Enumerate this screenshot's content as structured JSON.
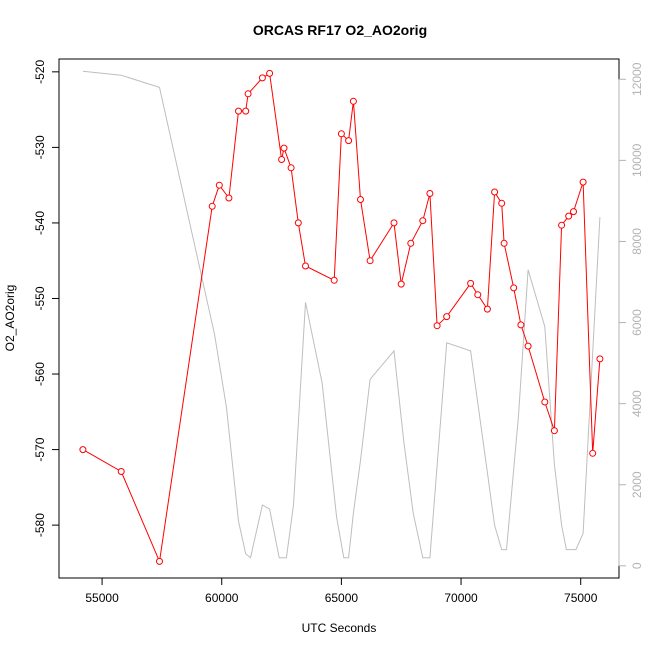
{
  "chart_data": {
    "type": "line",
    "title": "ORCAS RF17 O2_AO2orig",
    "xlabel": "UTC Seconds",
    "ylabel": "O2_AO2orig",
    "xlim": [
      53200,
      76600
    ],
    "ylim": [
      -587.0,
      -518.3
    ],
    "y2lim": [
      -300,
      12500
    ],
    "x_ticks": [
      55000,
      60000,
      65000,
      70000,
      75000
    ],
    "y_ticks": [
      -580,
      -570,
      -560,
      -550,
      -540,
      -530,
      -520
    ],
    "y2_ticks": [
      0,
      2000,
      4000,
      6000,
      8000,
      10000,
      12000
    ],
    "grid": false,
    "colors": {
      "primary": "#ff0000",
      "secondary": "#bebebe",
      "axis": "#000000",
      "right_axis": "#b3b3b3"
    },
    "series": [
      {
        "axis": "left",
        "x": [
          54200,
          55800,
          57400,
          59600,
          59900,
          60300,
          60700,
          61000,
          61100,
          61700,
          62000,
          62500,
          62600,
          62900,
          63200,
          63500,
          64700,
          65000,
          65300,
          65500,
          65800,
          66200,
          67200,
          67500,
          67900,
          68400,
          68700,
          69000,
          69400,
          70400,
          70700,
          71100,
          71400,
          71700,
          71800,
          72200,
          72500,
          72800,
          73500,
          73900,
          74200,
          74500,
          74700,
          75100,
          75500,
          75800
        ],
        "y": [
          -570.0,
          -572.9,
          -584.8,
          -537.8,
          -535.0,
          -536.7,
          -525.2,
          -525.2,
          -522.9,
          -520.8,
          -520.2,
          -531.6,
          -530.1,
          -532.7,
          -540.0,
          -545.7,
          -547.6,
          -528.2,
          -529.1,
          -523.9,
          -536.9,
          -545.0,
          -540.0,
          -548.1,
          -542.7,
          -539.7,
          -536.1,
          -553.6,
          -552.4,
          -548.0,
          -549.5,
          -551.4,
          -535.9,
          -537.4,
          -542.7,
          -548.6,
          -553.5,
          -556.3,
          -563.7,
          -567.5,
          -540.3,
          -539.1,
          -538.5,
          -534.6,
          -570.5,
          -558.0
        ]
      },
      {
        "axis": "right",
        "x": [
          54200,
          55800,
          57400,
          59700,
          60200,
          60700,
          61000,
          61200,
          61700,
          62000,
          62400,
          62700,
          63000,
          63500,
          64200,
          64800,
          65100,
          65300,
          65500,
          65800,
          66200,
          67200,
          67600,
          68000,
          68400,
          68700,
          69400,
          70400,
          71100,
          71400,
          71700,
          71900,
          72400,
          72800,
          73500,
          73900,
          74200,
          74400,
          74600,
          74800,
          75100,
          75800
        ],
        "y": [
          12200,
          12100,
          11800,
          5700,
          3900,
          1100,
          300,
          200,
          1500,
          1400,
          200,
          200,
          1500,
          6500,
          4500,
          1200,
          200,
          200,
          1300,
          2600,
          4600,
          5300,
          3100,
          1300,
          200,
          200,
          5500,
          5300,
          2300,
          1000,
          400,
          400,
          3700,
          7300,
          5900,
          2500,
          1000,
          400,
          400,
          400,
          800,
          8600
        ]
      }
    ]
  }
}
